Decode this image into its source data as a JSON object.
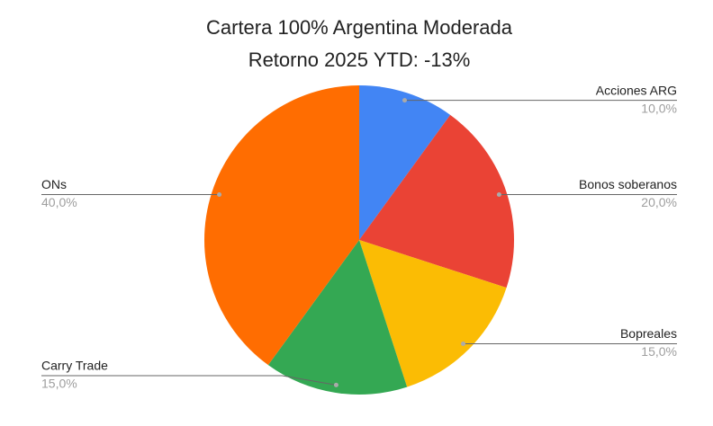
{
  "chart_data": {
    "type": "pie",
    "title": "Cartera 100% Argentina Moderada",
    "subtitle": "Retorno 2025 YTD: -13%",
    "categories": [
      "Acciones ARG",
      "Bonos soberanos",
      "Bopreales",
      "Carry Trade",
      "ONs"
    ],
    "values": [
      10,
      20,
      15,
      15,
      40
    ],
    "value_labels": [
      "10,0%",
      "20,0%",
      "15,0%",
      "15,0%",
      "40,0%"
    ],
    "colors": [
      "#4285f4",
      "#ea4335",
      "#fbbc04",
      "#34a853",
      "#ff6d01"
    ]
  }
}
